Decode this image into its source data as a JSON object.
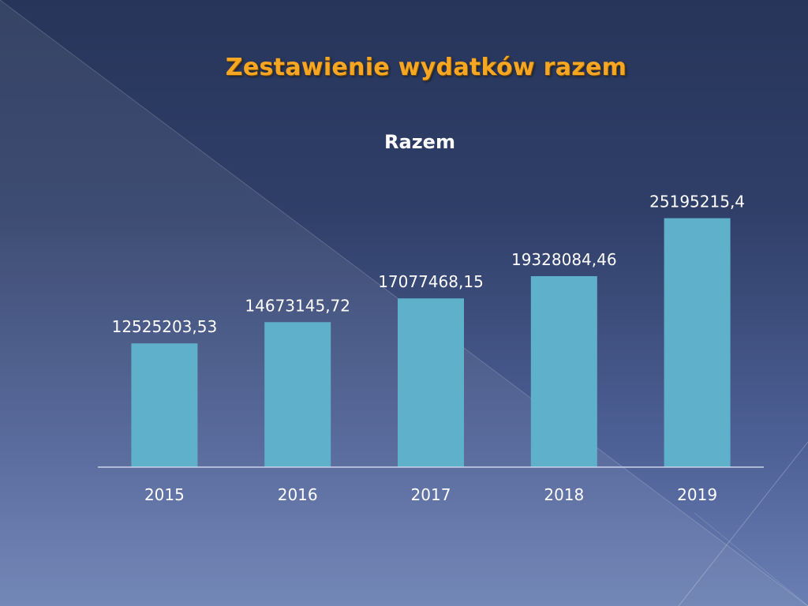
{
  "slide": {
    "title": "Zestawienie wydatków razem"
  },
  "colors": {
    "bar": "#5fb1cb",
    "axis": "#c9d3ea",
    "title": "#f6a623"
  },
  "chart_data": {
    "type": "bar",
    "title": "Razem",
    "categories": [
      "2015",
      "2016",
      "2017",
      "2018",
      "2019"
    ],
    "values": [
      12525203.53,
      14673145.72,
      17077468.15,
      19328084.46,
      25195215.4
    ],
    "value_labels": [
      "12525203,53",
      "14673145,72",
      "17077468,15",
      "19328084,46",
      "25195215,4"
    ],
    "ylim": [
      0,
      30000000
    ],
    "grid": false,
    "legend": "none"
  }
}
